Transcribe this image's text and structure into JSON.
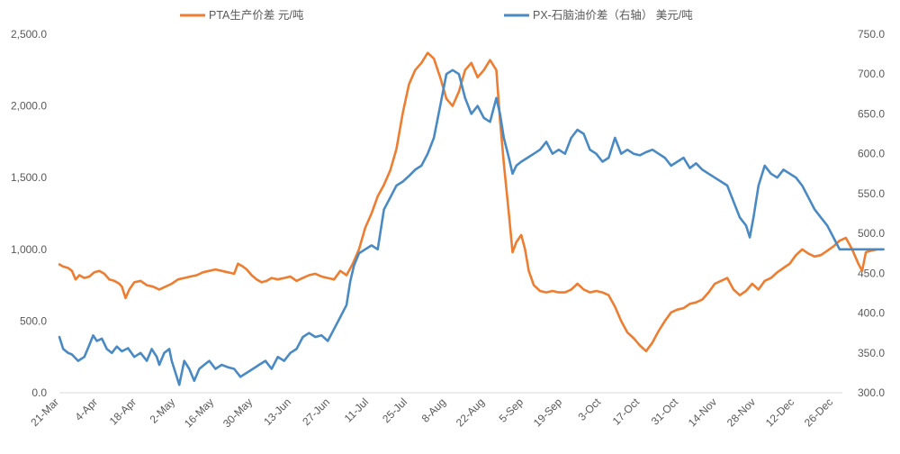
{
  "chart_data": {
    "type": "line",
    "title": "",
    "legend": {
      "placement": "top"
    },
    "grid": false,
    "x_ticks": [
      "21-Mar",
      "4-Apr",
      "18-Apr",
      "2-May",
      "16-May",
      "30-May",
      "13-Jun",
      "27-Jun",
      "11-Jul",
      "25-Jul",
      "8-Aug",
      "22-Aug",
      "5-Sep",
      "19-Sep",
      "3-Oct",
      "17-Oct",
      "31-Oct",
      "14-Nov",
      "28-Nov",
      "12-Dec",
      "26-Dec"
    ],
    "y_left": {
      "range": [
        0,
        2500
      ],
      "ticks": [
        "0.0",
        "500.0",
        "1,000.0",
        "1,500.0",
        "2,000.0",
        "2,500.0"
      ]
    },
    "y_right": {
      "range": [
        300,
        750
      ],
      "ticks": [
        "300.0",
        "350.0",
        "400.0",
        "450.0",
        "500.0",
        "550.0",
        "600.0",
        "650.0",
        "700.0",
        "750.0"
      ]
    },
    "series": [
      {
        "name": "PTA生产价差 元/吨",
        "axis": "left",
        "color": "#ED7D31",
        "points": [
          [
            0,
            895
          ],
          [
            0.3,
            880
          ],
          [
            0.7,
            870
          ],
          [
            1,
            850
          ],
          [
            1.3,
            790
          ],
          [
            1.6,
            820
          ],
          [
            2,
            800
          ],
          [
            2.4,
            810
          ],
          [
            2.8,
            840
          ],
          [
            3.2,
            850
          ],
          [
            3.6,
            830
          ],
          [
            4,
            790
          ],
          [
            4.4,
            780
          ],
          [
            4.8,
            760
          ],
          [
            5,
            740
          ],
          [
            5.3,
            660
          ],
          [
            5.6,
            720
          ],
          [
            6,
            770
          ],
          [
            6.5,
            780
          ],
          [
            7,
            750
          ],
          [
            7.5,
            740
          ],
          [
            8,
            720
          ],
          [
            8.5,
            740
          ],
          [
            9,
            760
          ],
          [
            9.5,
            790
          ],
          [
            10,
            800
          ],
          [
            10.5,
            810
          ],
          [
            11,
            820
          ],
          [
            11.5,
            840
          ],
          [
            12,
            850
          ],
          [
            12.5,
            860
          ],
          [
            13,
            850
          ],
          [
            13.5,
            840
          ],
          [
            14,
            830
          ],
          [
            14.3,
            900
          ],
          [
            14.7,
            880
          ],
          [
            15,
            860
          ],
          [
            15.4,
            820
          ],
          [
            15.8,
            790
          ],
          [
            16.2,
            770
          ],
          [
            16.6,
            780
          ],
          [
            17,
            800
          ],
          [
            17.5,
            790
          ],
          [
            18,
            800
          ],
          [
            18.5,
            810
          ],
          [
            19,
            780
          ],
          [
            19.5,
            800
          ],
          [
            20,
            820
          ],
          [
            20.5,
            830
          ],
          [
            21,
            810
          ],
          [
            21.5,
            800
          ],
          [
            22,
            790
          ],
          [
            22.5,
            850
          ],
          [
            23,
            820
          ],
          [
            23.5,
            900
          ],
          [
            24,
            1000
          ],
          [
            24.5,
            1150
          ],
          [
            25,
            1250
          ],
          [
            25.5,
            1370
          ],
          [
            26,
            1450
          ],
          [
            26.5,
            1550
          ],
          [
            27,
            1700
          ],
          [
            27.5,
            1950
          ],
          [
            28,
            2150
          ],
          [
            28.5,
            2250
          ],
          [
            29,
            2300
          ],
          [
            29.5,
            2370
          ],
          [
            30,
            2330
          ],
          [
            30.5,
            2200
          ],
          [
            31,
            2050
          ],
          [
            31.5,
            2000
          ],
          [
            32,
            2100
          ],
          [
            32.5,
            2250
          ],
          [
            33,
            2300
          ],
          [
            33.5,
            2200
          ],
          [
            34,
            2250
          ],
          [
            34.5,
            2320
          ],
          [
            35,
            2250
          ],
          [
            35.3,
            1900
          ],
          [
            35.6,
            1600
          ],
          [
            36,
            1250
          ],
          [
            36.3,
            980
          ],
          [
            36.6,
            1050
          ],
          [
            37,
            1100
          ],
          [
            37.3,
            1000
          ],
          [
            37.6,
            850
          ],
          [
            38,
            750
          ],
          [
            38.5,
            710
          ],
          [
            39,
            700
          ],
          [
            39.5,
            710
          ],
          [
            40,
            700
          ],
          [
            40.5,
            700
          ],
          [
            41,
            720
          ],
          [
            41.5,
            760
          ],
          [
            42,
            720
          ],
          [
            42.5,
            700
          ],
          [
            43,
            710
          ],
          [
            43.5,
            700
          ],
          [
            44,
            680
          ],
          [
            44.5,
            600
          ],
          [
            45,
            500
          ],
          [
            45.5,
            420
          ],
          [
            46,
            380
          ],
          [
            46.5,
            330
          ],
          [
            47,
            290
          ],
          [
            47.5,
            350
          ],
          [
            48,
            430
          ],
          [
            48.5,
            500
          ],
          [
            49,
            560
          ],
          [
            49.5,
            580
          ],
          [
            50,
            590
          ],
          [
            50.5,
            620
          ],
          [
            51,
            630
          ],
          [
            51.5,
            650
          ],
          [
            52,
            700
          ],
          [
            52.5,
            760
          ],
          [
            53,
            780
          ],
          [
            53.5,
            800
          ],
          [
            54,
            720
          ],
          [
            54.5,
            680
          ],
          [
            55,
            710
          ],
          [
            55.5,
            760
          ],
          [
            56,
            720
          ],
          [
            56.5,
            780
          ],
          [
            57,
            800
          ],
          [
            57.5,
            840
          ],
          [
            58,
            870
          ],
          [
            58.5,
            900
          ],
          [
            59,
            960
          ],
          [
            59.5,
            1000
          ],
          [
            60,
            970
          ],
          [
            60.5,
            950
          ],
          [
            61,
            960
          ],
          [
            61.5,
            990
          ],
          [
            62,
            1020
          ],
          [
            62.5,
            1060
          ],
          [
            63,
            1080
          ],
          [
            63.5,
            1000
          ],
          [
            64,
            900
          ],
          [
            64.3,
            850
          ],
          [
            64.6,
            980
          ],
          [
            65,
            990
          ],
          [
            65.5,
            1000
          ],
          [
            66,
            1000
          ]
        ]
      },
      {
        "name": "PX-石脑油价差（右轴） 美元/吨",
        "axis": "right",
        "color": "#4A8AC4",
        "points": [
          [
            0,
            370
          ],
          [
            0.3,
            355
          ],
          [
            0.7,
            350
          ],
          [
            1,
            348
          ],
          [
            1.5,
            340
          ],
          [
            2,
            345
          ],
          [
            2.4,
            360
          ],
          [
            2.7,
            372
          ],
          [
            3,
            365
          ],
          [
            3.4,
            368
          ],
          [
            3.8,
            355
          ],
          [
            4.2,
            350
          ],
          [
            4.6,
            358
          ],
          [
            5,
            352
          ],
          [
            5.5,
            356
          ],
          [
            6,
            345
          ],
          [
            6.5,
            350
          ],
          [
            7,
            340
          ],
          [
            7.4,
            355
          ],
          [
            7.8,
            345
          ],
          [
            8,
            335
          ],
          [
            8.4,
            350
          ],
          [
            8.8,
            355
          ],
          [
            9,
            340
          ],
          [
            9.3,
            325
          ],
          [
            9.6,
            310
          ],
          [
            10,
            340
          ],
          [
            10.4,
            330
          ],
          [
            10.8,
            315
          ],
          [
            11.2,
            330
          ],
          [
            11.6,
            335
          ],
          [
            12,
            340
          ],
          [
            12.5,
            330
          ],
          [
            13,
            335
          ],
          [
            13.5,
            332
          ],
          [
            14,
            330
          ],
          [
            14.5,
            320
          ],
          [
            15,
            325
          ],
          [
            15.5,
            330
          ],
          [
            16,
            335
          ],
          [
            16.5,
            340
          ],
          [
            17,
            330
          ],
          [
            17.5,
            345
          ],
          [
            18,
            340
          ],
          [
            18.5,
            350
          ],
          [
            19,
            355
          ],
          [
            19.5,
            370
          ],
          [
            20,
            375
          ],
          [
            20.5,
            370
          ],
          [
            21,
            372
          ],
          [
            21.5,
            365
          ],
          [
            22,
            380
          ],
          [
            22.5,
            395
          ],
          [
            23,
            410
          ],
          [
            23.3,
            440
          ],
          [
            23.6,
            460
          ],
          [
            24,
            475
          ],
          [
            24.5,
            480
          ],
          [
            25,
            485
          ],
          [
            25.5,
            480
          ],
          [
            26,
            530
          ],
          [
            26.5,
            545
          ],
          [
            27,
            560
          ],
          [
            27.5,
            565
          ],
          [
            28,
            572
          ],
          [
            28.5,
            580
          ],
          [
            29,
            585
          ],
          [
            29.5,
            600
          ],
          [
            30,
            620
          ],
          [
            30.5,
            660
          ],
          [
            31,
            700
          ],
          [
            31.5,
            705
          ],
          [
            32,
            700
          ],
          [
            32.5,
            670
          ],
          [
            33,
            650
          ],
          [
            33.5,
            660
          ],
          [
            34,
            645
          ],
          [
            34.5,
            640
          ],
          [
            35,
            670
          ],
          [
            35.3,
            650
          ],
          [
            35.6,
            620
          ],
          [
            36,
            595
          ],
          [
            36.3,
            575
          ],
          [
            36.6,
            585
          ],
          [
            37,
            590
          ],
          [
            37.5,
            595
          ],
          [
            38,
            600
          ],
          [
            38.5,
            605
          ],
          [
            39,
            615
          ],
          [
            39.5,
            600
          ],
          [
            40,
            605
          ],
          [
            40.5,
            600
          ],
          [
            41,
            620
          ],
          [
            41.5,
            630
          ],
          [
            42,
            625
          ],
          [
            42.5,
            605
          ],
          [
            43,
            600
          ],
          [
            43.5,
            590
          ],
          [
            44,
            595
          ],
          [
            44.5,
            620
          ],
          [
            45,
            600
          ],
          [
            45.5,
            605
          ],
          [
            46,
            600
          ],
          [
            46.5,
            598
          ],
          [
            47,
            602
          ],
          [
            47.5,
            605
          ],
          [
            48,
            600
          ],
          [
            48.5,
            595
          ],
          [
            49,
            585
          ],
          [
            49.5,
            590
          ],
          [
            50,
            595
          ],
          [
            50.5,
            582
          ],
          [
            51,
            588
          ],
          [
            51.5,
            580
          ],
          [
            52,
            575
          ],
          [
            52.5,
            570
          ],
          [
            53,
            565
          ],
          [
            53.5,
            560
          ],
          [
            54,
            540
          ],
          [
            54.5,
            520
          ],
          [
            55,
            510
          ],
          [
            55.3,
            495
          ],
          [
            55.6,
            520
          ],
          [
            56,
            560
          ],
          [
            56.5,
            585
          ],
          [
            57,
            575
          ],
          [
            57.5,
            570
          ],
          [
            58,
            580
          ],
          [
            58.5,
            575
          ],
          [
            59,
            570
          ],
          [
            59.5,
            560
          ],
          [
            60,
            545
          ],
          [
            60.5,
            530
          ],
          [
            61,
            520
          ],
          [
            61.5,
            510
          ],
          [
            62,
            495
          ],
          [
            62.5,
            480
          ],
          [
            63,
            480
          ],
          [
            64,
            480
          ],
          [
            65,
            480
          ],
          [
            66,
            480
          ]
        ]
      }
    ]
  }
}
